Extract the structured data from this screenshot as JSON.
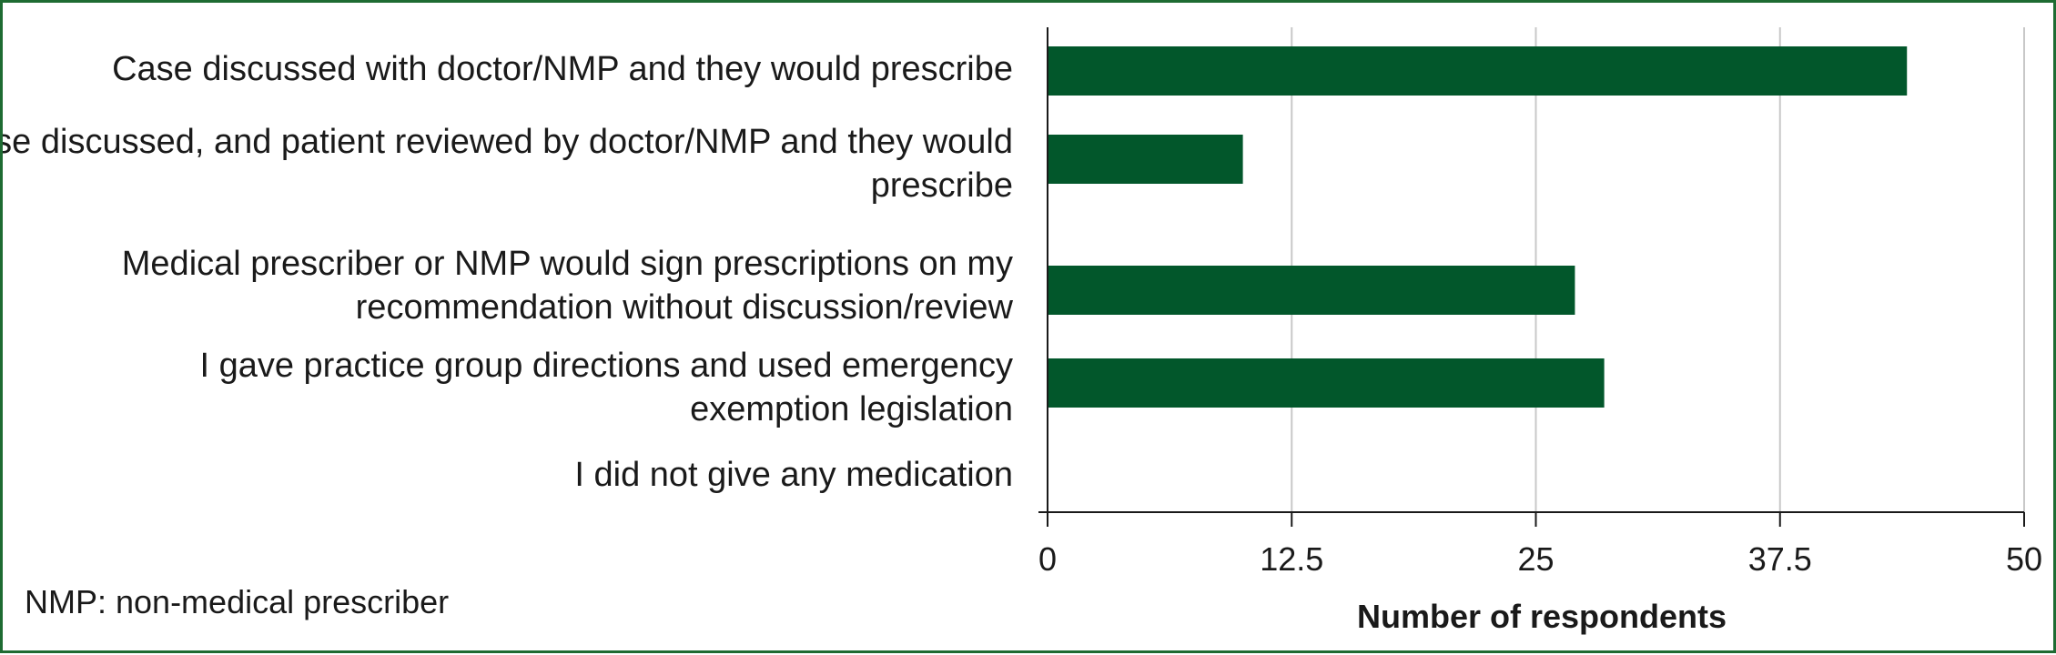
{
  "chart_data": {
    "type": "bar",
    "orientation": "horizontal",
    "categories": [
      [
        "Case discussed with doctor/NMP and they would prescribe"
      ],
      [
        "Case discussed, and patient reviewed by doctor/NMP and they would",
        "prescribe"
      ],
      [
        "Medical prescriber or NMP would sign prescriptions on my",
        "recommendation without discussion/review"
      ],
      [
        "I gave practice group directions and used emergency",
        "exemption legislation"
      ],
      [
        "I did not give any medication"
      ]
    ],
    "values": [
      44,
      10,
      27,
      28.5,
      0
    ],
    "xlabel": "Number of respondents",
    "xlim": [
      0,
      50
    ],
    "ticks": [
      0,
      12.5,
      25,
      37.5,
      50
    ],
    "tick_labels": [
      "0",
      "12.5",
      "25",
      "37.5",
      "50"
    ],
    "grid": true,
    "bar_color": "#02572b",
    "grid_color": "#c8c8c8",
    "border_color": "#1e6b32"
  },
  "footnote": "NMP: non-medical prescriber"
}
